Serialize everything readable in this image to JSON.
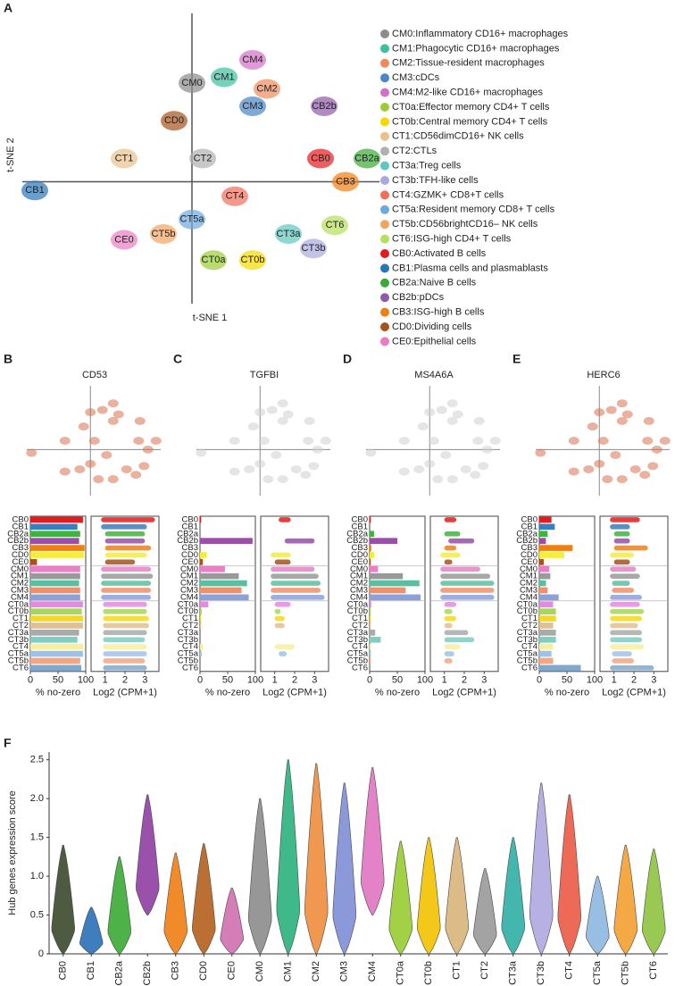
{
  "chart_data": [
    {
      "type": "scatter",
      "panel": "A",
      "xlabel": "t-SNE 1",
      "ylabel": "t-SNE 2",
      "xlim": [
        -47.5,
        52.5
      ],
      "ylim": [
        -42,
        58
      ],
      "clusters": [
        {
          "name": "CM0:Inflammatory CD16+ macrophages",
          "label": "CM0",
          "color": "#8c8c8c",
          "x": 0,
          "y": 34
        },
        {
          "name": "CM1:Phagocytic CD16+ macrophages",
          "label": "CM1",
          "color": "#3dbf9f",
          "x": 9,
          "y": 36
        },
        {
          "name": "CM2:Tissue-resident macrophages",
          "label": "CM2",
          "color": "#f08a5d",
          "x": 21,
          "y": 32
        },
        {
          "name": "CM3:cDCs",
          "label": "CM3",
          "color": "#4a86c5",
          "x": 17,
          "y": 26
        },
        {
          "name": "CM4:M2-like CD16+ macrophages",
          "label": "CM4",
          "color": "#d36fc6",
          "x": 17,
          "y": 42
        },
        {
          "name": "CT0a:Effector memory CD4+ T cells",
          "label": "CT0a",
          "color": "#9acd32",
          "x": 6,
          "y": -27
        },
        {
          "name": "CT0b:Central memory CD4+ T cells",
          "label": "CT0b",
          "color": "#f5d800",
          "x": 17,
          "y": -27
        },
        {
          "name": "CT1:CD56dimCD16+ NK cells",
          "label": "CT1",
          "color": "#e8c28d",
          "x": -19,
          "y": 8
        },
        {
          "name": "CT2:CTLs",
          "label": "CT2",
          "color": "#b0b0b0",
          "x": 3,
          "y": 8
        },
        {
          "name": "CT3a:Treg cells",
          "label": "CT3a",
          "color": "#5cc8c0",
          "x": 27,
          "y": -18
        },
        {
          "name": "CT3b:TFH-like cells",
          "label": "CT3b",
          "color": "#a9a9e0",
          "x": 34,
          "y": -23
        },
        {
          "name": "CT4:GZMK+ CD8+T cells",
          "label": "CT4",
          "color": "#f06e5a",
          "x": 12,
          "y": -5
        },
        {
          "name": "CT5a:Resident memory CD8+ T cells",
          "label": "CT5a",
          "color": "#6fa8dc",
          "x": 0,
          "y": -13
        },
        {
          "name": "CT5b:CD56brightCD16– NK cells",
          "label": "CT5b",
          "color": "#f4a460",
          "x": -8,
          "y": -18
        },
        {
          "name": "CT6:ISG-high CD4+ T cells",
          "label": "CT6",
          "color": "#b5e05a",
          "x": 40,
          "y": -15
        },
        {
          "name": "CB0:Activated B cells",
          "label": "CB0",
          "color": "#e41a1c",
          "x": 36,
          "y": 8
        },
        {
          "name": "CB1:Plasma cells and plasmablasts",
          "label": "CB1",
          "color": "#2a75b8",
          "x": -44,
          "y": -3
        },
        {
          "name": "CB2a:Naive B cells",
          "label": "CB2a",
          "color": "#3aaa35",
          "x": 49,
          "y": 8
        },
        {
          "name": "CB2b:pDCs",
          "label": "CB2b",
          "color": "#8e5aa8",
          "x": 37,
          "y": 26
        },
        {
          "name": "CB3:ISG-high B cells",
          "label": "CB3",
          "color": "#f07f12",
          "x": 43,
          "y": 0
        },
        {
          "name": "CD0:Dividing cells",
          "label": "CD0",
          "color": "#a5521c",
          "x": -5,
          "y": 21
        },
        {
          "name": "CE0:Epithelial cells",
          "label": "CE0",
          "color": "#e87dc0",
          "x": -19,
          "y": -20
        }
      ]
    },
    {
      "type": "gene-panels",
      "xlabel_bar": "% no-zero",
      "xlabel_log": "Log2 (CPM+1)",
      "categories": [
        "CB0",
        "CB1",
        "CB2a",
        "CB2b",
        "CB3",
        "CD0",
        "CE0",
        "CM0",
        "CM1",
        "CM2",
        "CM3",
        "CM4",
        "CT0a",
        "CT0b",
        "CT1",
        "CT2",
        "CT3a",
        "CT3b",
        "CT4",
        "CT5a",
        "CT5b",
        "CT6"
      ],
      "colors": [
        "#e41a1c",
        "#3a7dc0",
        "#3db53a",
        "#9a4ea8",
        "#f07f12",
        "#f2ee3a",
        "#a5521c",
        "#ea7fc8",
        "#999999",
        "#5abfa0",
        "#f0906a",
        "#8da0d8",
        "#e48ae0",
        "#a8d65a",
        "#f5d820",
        "#e0c090",
        "#aaaaaa",
        "#80cdc1",
        "#f5f0a0",
        "#9cc3e6",
        "#f4a582",
        "#80a8cc"
      ],
      "xlim_bar": [
        0,
        100
      ],
      "xticks_bar": [
        0,
        50,
        100
      ],
      "xlim_log": [
        0.3,
        3.7
      ],
      "xticks_log": [
        1,
        2,
        3
      ],
      "genes": [
        {
          "panel": "B",
          "name": "CD53",
          "values": [
            95,
            85,
            90,
            88,
            98,
            97,
            12,
            90,
            90,
            88,
            90,
            90,
            95,
            93,
            95,
            95,
            88,
            85,
            95,
            95,
            90,
            92
          ],
          "log_min": [
            0.8,
            0.8,
            1,
            1,
            1,
            1,
            1,
            0.8,
            0.8,
            0.8,
            0.8,
            0.8,
            0.9,
            0.9,
            0.9,
            0.9,
            0.9,
            0.9,
            0.9,
            0.9,
            0.9,
            0.9
          ],
          "log_max": [
            3.5,
            3.1,
            3,
            3,
            3.3,
            3.1,
            2.5,
            3.3,
            3.4,
            3.3,
            3.3,
            3.3,
            3.1,
            3.1,
            3.2,
            3.2,
            3.1,
            3,
            3.1,
            3.1,
            3,
            3.1
          ]
        },
        {
          "panel": "C",
          "name": "TGFBI",
          "values": [
            2,
            0,
            0,
            95,
            0,
            12,
            5,
            45,
            70,
            85,
            75,
            88,
            15,
            3,
            2,
            2,
            0,
            0,
            5,
            3,
            0,
            0
          ],
          "log_min": [
            1.2,
            null,
            null,
            1.5,
            null,
            0.8,
            1,
            0.8,
            0.8,
            0.8,
            0.8,
            0.8,
            1,
            1,
            1,
            1,
            null,
            null,
            1,
            1.2,
            null,
            null
          ],
          "log_max": [
            1.8,
            null,
            null,
            3,
            null,
            1.8,
            1.8,
            3,
            3.2,
            3.3,
            3.3,
            3.5,
            1.8,
            1.3,
            1.5,
            1.5,
            null,
            null,
            2,
            1.6,
            null,
            null
          ]
        },
        {
          "panel": "D",
          "name": "MS4A6A",
          "values": [
            2,
            0,
            8,
            50,
            3,
            8,
            2,
            15,
            60,
            90,
            65,
            92,
            3,
            2,
            2,
            2,
            10,
            20,
            3,
            2,
            2,
            0
          ],
          "log_min": [
            1,
            null,
            1,
            1.2,
            1,
            0.8,
            1,
            0.8,
            0.8,
            0.8,
            0.8,
            0.8,
            1,
            1,
            1,
            1,
            1,
            1,
            1,
            1,
            1,
            null
          ],
          "log_max": [
            1.6,
            null,
            1.8,
            2.5,
            1.6,
            1.8,
            1.4,
            2.8,
            3.3,
            3.5,
            3.5,
            3.5,
            1.6,
            1.4,
            1.6,
            1.4,
            2.2,
            2.5,
            1.8,
            1.5,
            1.4,
            null
          ]
        },
        {
          "panel": "E",
          "name": "HERC6",
          "values": [
            22,
            28,
            15,
            12,
            60,
            45,
            8,
            18,
            20,
            12,
            15,
            35,
            25,
            30,
            30,
            25,
            30,
            30,
            25,
            22,
            25,
            75
          ],
          "log_min": [
            0.8,
            0.8,
            1,
            1,
            1,
            0.8,
            1,
            0.8,
            0.8,
            0.9,
            0.9,
            0.8,
            0.8,
            0.8,
            0.8,
            0.8,
            0.8,
            0.8,
            0.8,
            0.9,
            0.9,
            0.8
          ],
          "log_max": [
            2.3,
            1.8,
            1.8,
            1.8,
            2.7,
            2,
            1.8,
            2.1,
            2.3,
            1.8,
            2,
            2.4,
            2.3,
            2.5,
            2.4,
            2.2,
            2.4,
            2.4,
            2.5,
            1.9,
            2,
            3
          ]
        }
      ]
    },
    {
      "type": "violin",
      "panel": "F",
      "ylabel": "Hub genes expression score",
      "categories": [
        "CB0",
        "CB1",
        "CB2a",
        "CB2b",
        "CB3",
        "CD0",
        "CE0",
        "CM0",
        "CM1",
        "CM2",
        "CM3",
        "CM4",
        "CT0a",
        "CT0b",
        "CT1",
        "CT2",
        "CT3a",
        "CT3b",
        "CT4",
        "CT5a",
        "CT5b",
        "CT6"
      ],
      "colors": [
        "#3c4a2c",
        "#2a6fb8",
        "#3aaa35",
        "#8e3fa3",
        "#f07f12",
        "#b5601c",
        "#d070b0",
        "#8c8c8c",
        "#2bb27d",
        "#ef8c3e",
        "#7f8ed8",
        "#e075c0",
        "#9acd32",
        "#f2c300",
        "#d9b47a",
        "#9a9a9a",
        "#2fb0a6",
        "#b0a8e0",
        "#ec5a45",
        "#8fb8e0",
        "#f5a030",
        "#8fc440"
      ],
      "min": [
        0,
        0,
        0,
        0.5,
        0,
        0,
        0,
        0,
        0,
        0,
        0,
        0.5,
        0,
        0,
        0,
        0,
        0,
        0,
        0,
        0,
        0,
        0
      ],
      "max": [
        1.4,
        0.6,
        1.25,
        2.05,
        1.3,
        1.42,
        0.85,
        2.0,
        2.5,
        2.45,
        2.2,
        2.4,
        1.45,
        1.5,
        1.5,
        1.1,
        1.5,
        2.2,
        2.05,
        1.0,
        1.4,
        1.35
      ],
      "ylim": [
        0,
        2.6
      ],
      "yticks": [
        0,
        0.5,
        {
          "value": 1,
          "label": "1.0"
        },
        1.5,
        {
          "value": 2,
          "label": "2.0"
        },
        2.5
      ]
    }
  ]
}
